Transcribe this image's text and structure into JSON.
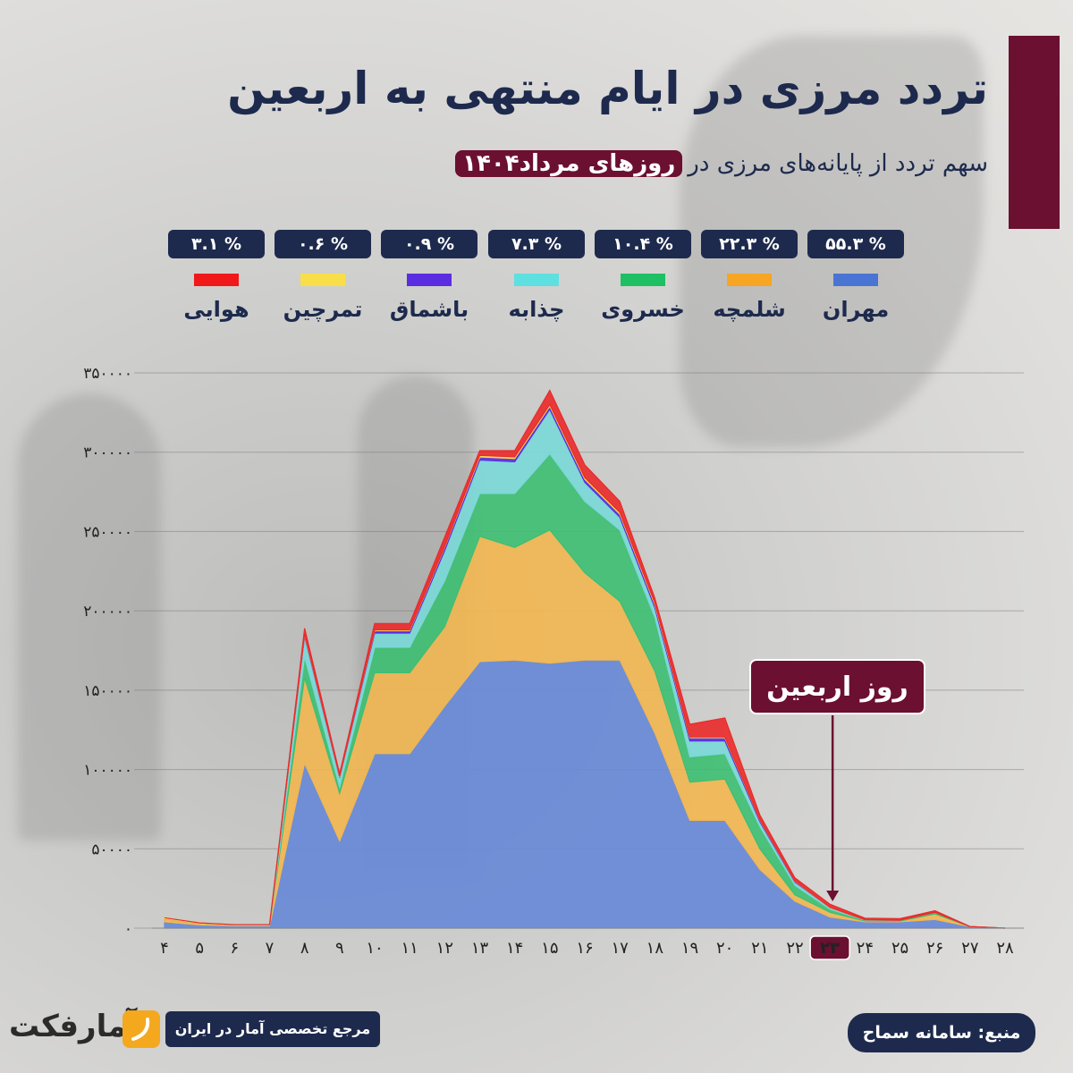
{
  "header": {
    "title": "تردد مرزی در ایام منتهی به اربعین",
    "subtitle_prefix": "سهم تردد از پایانه‌های مرزی در",
    "subtitle_highlight": "روزهای مرداد۱۴۰۴"
  },
  "legend": [
    {
      "name": "مهران",
      "share": "% ۵۵.۳",
      "color": "#4a74d4"
    },
    {
      "name": "شلمچه",
      "share": "% ۲۲.۳",
      "color": "#f6a623"
    },
    {
      "name": "خسروی",
      "share": "% ۱۰.۴",
      "color": "#1fbf63"
    },
    {
      "name": "چذابه",
      "share": "% ۷.۳",
      "color": "#5ee0e0"
    },
    {
      "name": "باشماق",
      "share": "% ۰.۹",
      "color": "#5a2ee0"
    },
    {
      "name": "تمرچین",
      "share": "% ۰.۶",
      "color": "#f8df4a"
    },
    {
      "name": "هوایی",
      "share": "% ۳.۱",
      "color": "#f01818"
    }
  ],
  "chart_data": {
    "type": "area",
    "stacked": true,
    "x": [
      4,
      5,
      6,
      7,
      8,
      9,
      10,
      11,
      12,
      13,
      14,
      15,
      16,
      17,
      18,
      19,
      20,
      21,
      22,
      23,
      24,
      25,
      26,
      27,
      28
    ],
    "x_tick_labels": [
      "۴",
      "۵",
      "۶",
      "۷",
      "۸",
      "۹",
      "۱۰",
      "۱۱",
      "۱۲",
      "۱۳",
      "۱۴",
      "۱۵",
      "۱۶",
      "۱۷",
      "۱۸",
      "۱۹",
      "۲۰",
      "۲۱",
      "۲۲",
      "۲۳",
      "۲۴",
      "۲۵",
      "۲۶",
      "۲۷",
      "۲۸"
    ],
    "highlight_x": 23,
    "ylim": [
      0,
      350000
    ],
    "y_ticks": [
      0,
      50000,
      100000,
      150000,
      200000,
      250000,
      300000,
      350000
    ],
    "y_tick_labels": [
      "۰",
      "۵۰۰۰۰",
      "۱۰۰۰۰۰",
      "۱۵۰۰۰۰",
      "۲۰۰۰۰۰",
      "۲۵۰۰۰۰",
      "۳۰۰۰۰۰",
      "۳۵۰۰۰۰"
    ],
    "grid": true,
    "series": [
      {
        "name": "مهران",
        "color": "#6a8bd6",
        "values": [
          4000,
          2000,
          1500,
          1500,
          104000,
          55000,
          110000,
          110000,
          140000,
          168000,
          169000,
          167000,
          169000,
          169000,
          123000,
          68000,
          68000,
          37000,
          17000,
          7000,
          4000,
          4000,
          5500,
          1000,
          0
        ]
      },
      {
        "name": "شلمچه",
        "color": "#f2b650",
        "values": [
          2000,
          1000,
          500,
          500,
          54000,
          30000,
          51000,
          51000,
          50000,
          79000,
          71000,
          84000,
          55000,
          37000,
          39000,
          24000,
          26000,
          13000,
          4000,
          3000,
          500,
          500,
          3500,
          0,
          0
        ]
      },
      {
        "name": "خسروی",
        "color": "#3cbf72",
        "values": [
          0,
          0,
          0,
          0,
          13000,
          4000,
          16000,
          16000,
          29000,
          27000,
          34000,
          48000,
          45000,
          45000,
          34000,
          16000,
          16000,
          14000,
          6000,
          2000,
          500,
          500,
          1000,
          0,
          0
        ]
      },
      {
        "name": "چذابه",
        "color": "#7ad8d8",
        "values": [
          0,
          0,
          0,
          0,
          13000,
          6000,
          9000,
          9000,
          19000,
          21000,
          20000,
          28000,
          12000,
          8000,
          6000,
          10000,
          8000,
          3000,
          2000,
          1000,
          300,
          0,
          0,
          0,
          0
        ]
      },
      {
        "name": "باشماق",
        "color": "#5a2ee0",
        "values": [
          0,
          0,
          0,
          0,
          1000,
          500,
          1500,
          1500,
          2000,
          2000,
          2000,
          2000,
          2000,
          2000,
          2000,
          2000,
          2000,
          1000,
          500,
          0,
          0,
          0,
          0,
          0,
          0
        ]
      },
      {
        "name": "تمرچین",
        "color": "#f8df4a",
        "values": [
          500,
          300,
          200,
          200,
          500,
          300,
          500,
          500,
          500,
          1000,
          1000,
          1000,
          1000,
          1000,
          1000,
          500,
          500,
          300,
          200,
          100,
          0,
          0,
          0,
          0,
          0
        ]
      },
      {
        "name": "هوایی",
        "color": "#ea2a2a",
        "values": [
          0,
          0,
          0,
          0,
          3500,
          1500,
          4000,
          4000,
          6000,
          3000,
          4000,
          9000,
          8000,
          7000,
          3000,
          8000,
          12000,
          3000,
          2000,
          2000,
          1000,
          1000,
          1000,
          0,
          0
        ]
      }
    ]
  },
  "annotation": {
    "label": "روز اربعین"
  },
  "footer": {
    "logo": "آمارفکت",
    "tagline": "مرجع تخصصی آمار در ایران",
    "source": "منبع: سامانه سماح"
  },
  "colors": {
    "navy": "#1d2a4d",
    "maroon": "#6b1030",
    "brand_orange": "#f4a81d"
  }
}
